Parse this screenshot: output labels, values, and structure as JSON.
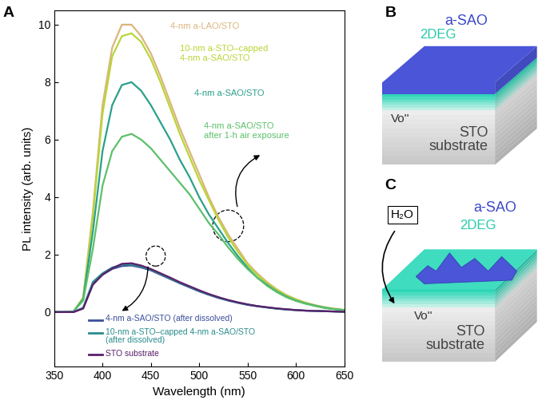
{
  "chart_data": {
    "type": "line",
    "title": "A",
    "x_label": "Wavelength (nm)",
    "y_label": "PL intensity (arb. units)",
    "x": [
      350,
      360,
      370,
      380,
      390,
      400,
      410,
      420,
      430,
      440,
      450,
      460,
      470,
      480,
      490,
      500,
      510,
      520,
      530,
      540,
      550,
      560,
      570,
      580,
      590,
      600,
      610,
      620,
      630,
      640,
      650
    ],
    "series": [
      {
        "name": "4-nm a-LAO/STO",
        "color": "#dcb47c",
        "values": [
          0,
          0,
          0.02,
          0.5,
          3.5,
          7.2,
          9.2,
          10.0,
          10.0,
          9.6,
          9.0,
          8.2,
          7.3,
          6.4,
          5.6,
          4.8,
          4.0,
          3.3,
          2.7,
          2.2,
          1.7,
          1.35,
          1.05,
          0.8,
          0.6,
          0.45,
          0.33,
          0.24,
          0.17,
          0.12,
          0.08
        ]
      },
      {
        "name": "10-nm a-STO–capped\n4-nm a-SAO/STO",
        "color": "#b8d638",
        "values": [
          0,
          0,
          0.02,
          0.5,
          3.3,
          6.9,
          8.9,
          9.6,
          9.7,
          9.4,
          8.8,
          8.0,
          7.1,
          6.2,
          5.4,
          4.6,
          3.9,
          3.2,
          2.6,
          2.1,
          1.65,
          1.3,
          1.0,
          0.78,
          0.58,
          0.44,
          0.32,
          0.23,
          0.16,
          0.11,
          0.07
        ]
      },
      {
        "name": "4-nm a-SAO/STO",
        "color": "#2aa08a",
        "values": [
          0,
          0,
          0.02,
          0.45,
          2.8,
          5.6,
          7.2,
          7.9,
          8.0,
          7.7,
          7.2,
          6.6,
          6.0,
          5.3,
          4.7,
          4.0,
          3.4,
          2.9,
          2.4,
          1.95,
          1.55,
          1.2,
          0.95,
          0.72,
          0.54,
          0.4,
          0.3,
          0.22,
          0.15,
          0.1,
          0.07
        ]
      },
      {
        "name": "4-nm a-SAO/STO\nafter 1-h air exposure",
        "color": "#5cc06a",
        "values": [
          0,
          0,
          0.02,
          0.4,
          2.2,
          4.4,
          5.6,
          6.1,
          6.2,
          6.0,
          5.7,
          5.3,
          4.9,
          4.5,
          4.1,
          3.6,
          3.1,
          2.7,
          2.25,
          1.85,
          1.5,
          1.2,
          0.92,
          0.7,
          0.52,
          0.39,
          0.29,
          0.21,
          0.14,
          0.1,
          0.06
        ]
      },
      {
        "name": "4-nm a-SAO/STO (after dissolved)",
        "color": "#3b4f9a",
        "values": [
          0,
          0,
          0,
          0.15,
          1.0,
          1.3,
          1.5,
          1.6,
          1.62,
          1.55,
          1.45,
          1.3,
          1.15,
          1.0,
          0.86,
          0.72,
          0.6,
          0.49,
          0.4,
          0.32,
          0.25,
          0.2,
          0.16,
          0.12,
          0.09,
          0.07,
          0.05,
          0.04,
          0.03,
          0.02,
          0.01
        ]
      },
      {
        "name": "10-nm a-STO–capped 4-nm a-SAO/STO\n(after dissolved)",
        "color": "#2a8c8c",
        "values": [
          0,
          0,
          0,
          0.15,
          1.05,
          1.35,
          1.55,
          1.65,
          1.65,
          1.58,
          1.47,
          1.32,
          1.17,
          1.02,
          0.88,
          0.74,
          0.61,
          0.5,
          0.41,
          0.33,
          0.26,
          0.21,
          0.16,
          0.12,
          0.09,
          0.07,
          0.05,
          0.04,
          0.03,
          0.02,
          0.01
        ]
      },
      {
        "name": "STO substrate",
        "color": "#5a1f6b",
        "values": [
          0,
          0,
          0,
          0.12,
          0.95,
          1.3,
          1.52,
          1.68,
          1.7,
          1.62,
          1.5,
          1.35,
          1.2,
          1.04,
          0.9,
          0.76,
          0.63,
          0.52,
          0.42,
          0.34,
          0.27,
          0.21,
          0.17,
          0.13,
          0.1,
          0.07,
          0.05,
          0.04,
          0.03,
          0.02,
          0.01
        ]
      }
    ],
    "xlim": [
      350,
      650
    ],
    "xticks": [
      350,
      400,
      450,
      500,
      550,
      600,
      650
    ],
    "ylim": [
      -1.9,
      10.5
    ],
    "yticks": [
      0,
      2,
      4,
      6,
      8,
      10
    ],
    "grid": false
  },
  "diagrams": [
    {
      "label": "B",
      "layers": [
        "a-SAO",
        "2DEG"
      ],
      "defect": "Vo''",
      "substrate": "STO\nsubstrate"
    },
    {
      "label": "C",
      "reactant": "H₂O",
      "layers": [
        "a-SAO",
        "2DEG"
      ],
      "defect": "Vo''",
      "substrate": "STO\nsubstrate"
    }
  ]
}
